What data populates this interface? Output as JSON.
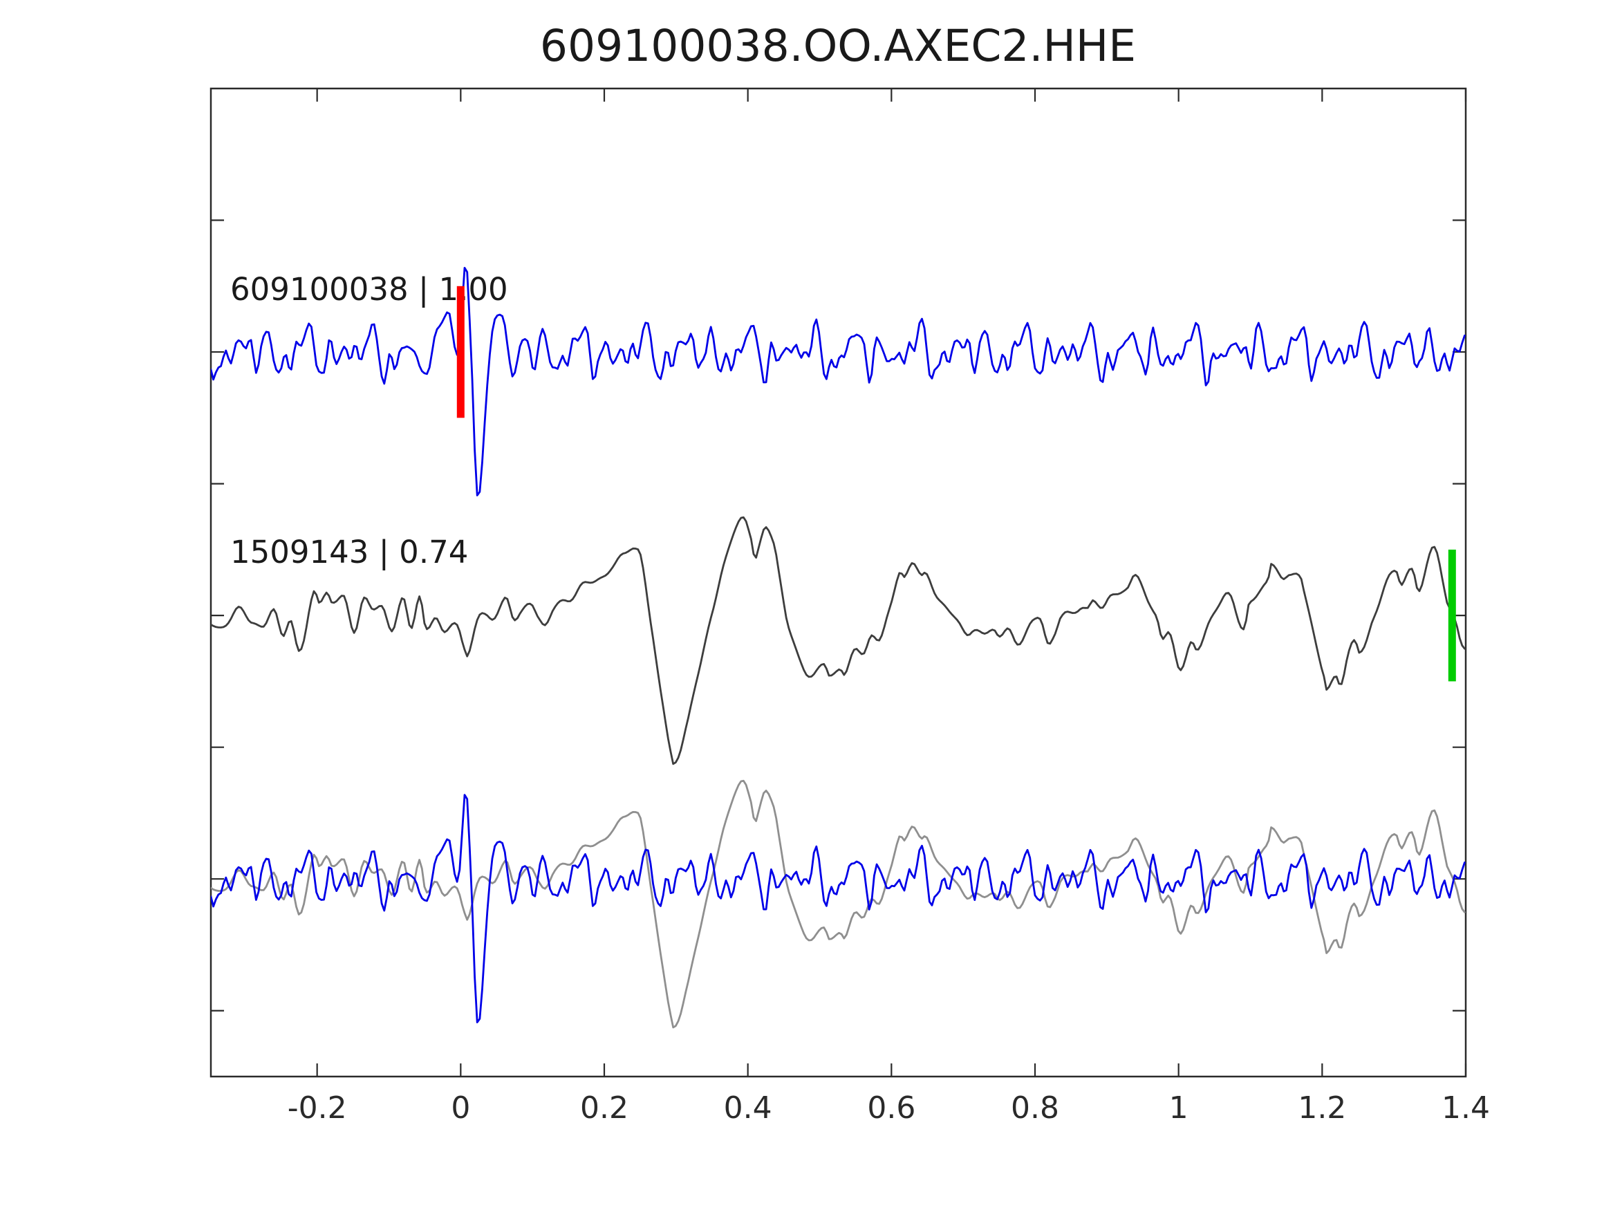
{
  "chart_data": {
    "type": "line",
    "title": "609100038.OO.AXEC2.HHE",
    "x": {
      "range": [
        -0.348,
        1.4
      ],
      "ticks": [
        -0.2,
        0,
        0.2,
        0.4,
        0.6,
        0.8,
        1,
        1.2,
        1.4
      ],
      "tick_labels": [
        "-0.2",
        "0",
        "0.2",
        "0.4",
        "0.6",
        "0.8",
        "1",
        "1.2",
        "1.4"
      ]
    },
    "y": {
      "range": [
        -3.5,
        4.0
      ],
      "ticks": [
        3,
        2,
        1,
        0,
        -1,
        -2,
        -3
      ],
      "tick_labels_shown": false
    },
    "axis_color": "#2a2a2a",
    "traces": [
      {
        "id": "template",
        "label": "609100038 | 1.00",
        "station_id": "609100038",
        "correlation": "1.00",
        "color": "#0000e8",
        "offset": 2,
        "spike_window": [
          -0.065,
          0.114
        ],
        "keypoints": [
          [
            -0.065,
            -0.04
          ],
          [
            -0.053,
            -0.14
          ],
          [
            -0.043,
            -0.07
          ],
          [
            -0.031,
            0.17
          ],
          [
            -0.017,
            0.32
          ],
          [
            -0.007,
            0.04
          ],
          [
            -0.002,
            0.05
          ],
          [
            0.007,
            0.68
          ],
          [
            0.015,
            -0.09
          ],
          [
            0.022,
            -1.07
          ],
          [
            0.027,
            -1.08
          ],
          [
            0.039,
            -0.04
          ],
          [
            0.048,
            0.26
          ],
          [
            0.06,
            0.25
          ],
          [
            0.071,
            -0.16
          ],
          [
            0.075,
            -0.18
          ],
          [
            0.085,
            0.08
          ],
          [
            0.095,
            0.05
          ],
          [
            0.103,
            -0.12
          ],
          [
            0.114,
            0.12
          ]
        ],
        "noise": {
          "seed": 11,
          "freqs": [
            13,
            21,
            34,
            47,
            62,
            83
          ],
          "amps": [
            0.07,
            0.085,
            0.075,
            0.055,
            0.038,
            0.022
          ]
        }
      },
      {
        "id": "detection",
        "label": "1509143 | 0.74",
        "station_id": "1509143",
        "correlation": "0.74",
        "color": "#3d3d3d",
        "offset": 0,
        "keypoints": [
          [
            -0.348,
            -0.02
          ],
          [
            -0.33,
            -0.06
          ],
          [
            -0.31,
            0.01
          ],
          [
            -0.29,
            -0.04
          ],
          [
            -0.275,
            -0.12
          ],
          [
            -0.26,
            0.02
          ],
          [
            -0.248,
            -0.14
          ],
          [
            -0.237,
            -0.02
          ],
          [
            -0.225,
            -0.2
          ],
          [
            -0.205,
            0.15
          ],
          [
            -0.197,
            0.05
          ],
          [
            -0.186,
            0.13
          ],
          [
            -0.18,
            0.07
          ],
          [
            -0.163,
            0.13
          ],
          [
            -0.149,
            -0.11
          ],
          [
            -0.136,
            0.12
          ],
          [
            -0.124,
            0.05
          ],
          [
            -0.109,
            0.12
          ],
          [
            -0.095,
            -0.08
          ],
          [
            -0.08,
            0.09
          ],
          [
            -0.069,
            -0.13
          ],
          [
            -0.057,
            0.08
          ],
          [
            -0.049,
            -0.12
          ],
          [
            -0.035,
            0.02
          ],
          [
            -0.023,
            -0.09
          ],
          [
            -0.004,
            -0.08
          ],
          [
            0.007,
            -0.23
          ],
          [
            0.011,
            -0.26
          ],
          [
            0.025,
            -0.01
          ],
          [
            0.033,
            0.02
          ],
          [
            0.046,
            -0.07
          ],
          [
            0.063,
            0.07
          ],
          [
            0.073,
            -0.02
          ],
          [
            0.084,
            0.09
          ],
          [
            0.099,
            0.11
          ],
          [
            0.108,
            0.02
          ],
          [
            0.118,
            -0.07
          ],
          [
            0.13,
            0.04
          ],
          [
            0.143,
            0.1
          ],
          [
            0.155,
            0.14
          ],
          [
            0.17,
            0.18
          ],
          [
            0.185,
            0.24
          ],
          [
            0.2,
            0.33
          ],
          [
            0.213,
            0.42
          ],
          [
            0.226,
            0.53
          ],
          [
            0.243,
            0.45
          ],
          [
            0.252,
            0.38
          ],
          [
            0.265,
            -0.08
          ],
          [
            0.28,
            -0.63
          ],
          [
            0.294,
            -1.09
          ],
          [
            0.3,
            -1.1
          ],
          [
            0.317,
            -0.79
          ],
          [
            0.331,
            -0.37
          ],
          [
            0.344,
            -0.08
          ],
          [
            0.354,
            0.09
          ],
          [
            0.367,
            0.34
          ],
          [
            0.381,
            0.61
          ],
          [
            0.395,
            0.71
          ],
          [
            0.405,
            0.61
          ],
          [
            0.41,
            0.47
          ],
          [
            0.418,
            0.59
          ],
          [
            0.425,
            0.67
          ],
          [
            0.437,
            0.53
          ],
          [
            0.444,
            0.32
          ],
          [
            0.455,
            0.0
          ],
          [
            0.47,
            -0.32
          ],
          [
            0.489,
            -0.51
          ],
          [
            0.507,
            -0.41
          ],
          [
            0.513,
            -0.47
          ],
          [
            0.528,
            -0.34
          ],
          [
            0.536,
            -0.41
          ],
          [
            0.55,
            -0.24
          ],
          [
            0.562,
            -0.27
          ],
          [
            0.572,
            -0.16
          ],
          [
            0.584,
            -0.18
          ],
          [
            0.596,
            0.03
          ],
          [
            0.611,
            0.26
          ],
          [
            0.618,
            0.21
          ],
          [
            0.63,
            0.41
          ],
          [
            0.642,
            0.34
          ],
          [
            0.649,
            0.36
          ],
          [
            0.663,
            0.18
          ],
          [
            0.676,
            0.08
          ],
          [
            0.69,
            -0.08
          ],
          [
            0.705,
            -0.13
          ],
          [
            0.714,
            -0.12
          ],
          [
            0.729,
            -0.17
          ],
          [
            0.743,
            -0.13
          ],
          [
            0.75,
            -0.15
          ],
          [
            0.762,
            -0.08
          ],
          [
            0.774,
            -0.15
          ],
          [
            0.787,
            -0.09
          ],
          [
            0.798,
            -0.07
          ],
          [
            0.808,
            -0.08
          ],
          [
            0.818,
            -0.25
          ],
          [
            0.827,
            -0.16
          ],
          [
            0.835,
            -0.04
          ],
          [
            0.851,
            0.04
          ],
          [
            0.862,
            0.05
          ],
          [
            0.873,
            0.04
          ],
          [
            0.881,
            0.14
          ],
          [
            0.893,
            0.11
          ],
          [
            0.904,
            0.19
          ],
          [
            0.917,
            0.12
          ],
          [
            0.929,
            0.18
          ],
          [
            0.938,
            0.25
          ],
          [
            0.951,
            0.17
          ],
          [
            0.962,
            0.09
          ],
          [
            0.97,
            0.02
          ],
          [
            0.977,
            -0.14
          ],
          [
            0.987,
            -0.14
          ],
          [
            1.001,
            -0.38
          ],
          [
            1.017,
            -0.2
          ],
          [
            1.026,
            -0.26
          ],
          [
            1.041,
            -0.09
          ],
          [
            1.057,
            0.02
          ],
          [
            1.074,
            0.15
          ],
          [
            1.091,
            -0.07
          ],
          [
            1.098,
            0.12
          ],
          [
            1.125,
            0.26
          ],
          [
            1.128,
            0.38
          ],
          [
            1.144,
            0.27
          ],
          [
            1.154,
            0.33
          ],
          [
            1.166,
            0.26
          ],
          [
            1.175,
            0.11
          ],
          [
            1.204,
            -0.44
          ],
          [
            1.207,
            -0.51
          ],
          [
            1.219,
            -0.41
          ],
          [
            1.226,
            -0.47
          ],
          [
            1.236,
            -0.3
          ],
          [
            1.246,
            -0.25
          ],
          [
            1.252,
            -0.32
          ],
          [
            1.27,
            -0.05
          ],
          [
            1.301,
            0.35
          ],
          [
            1.311,
            0.23
          ],
          [
            1.326,
            0.39
          ],
          [
            1.335,
            0.26
          ],
          [
            1.355,
            0.51
          ],
          [
            1.373,
            0.09
          ],
          [
            1.379,
            0.02
          ],
          [
            1.386,
            -0.08
          ],
          [
            1.393,
            -0.24
          ],
          [
            1.399,
            -0.26
          ]
        ],
        "noise": {
          "seed": 5,
          "freqs": [
            9,
            16,
            27,
            40
          ],
          "amps": [
            0.035,
            0.028,
            0.02,
            0.012
          ]
        }
      },
      {
        "id": "overlay",
        "components": [
          "detection",
          "template"
        ],
        "detection_overlay_color": "#8f8f8f",
        "template_overlay_color": "#0000e8",
        "offset": -2
      }
    ],
    "markers": [
      {
        "id": "template-pick",
        "trace": "template",
        "color": "#ff0000",
        "t": 0.0,
        "v_center": 2,
        "half_height": 0.5
      },
      {
        "id": "detection-pick",
        "trace": "detection",
        "color": "#00cc00",
        "t": 1.381,
        "v_center": 0,
        "half_height": 0.5
      }
    ]
  }
}
